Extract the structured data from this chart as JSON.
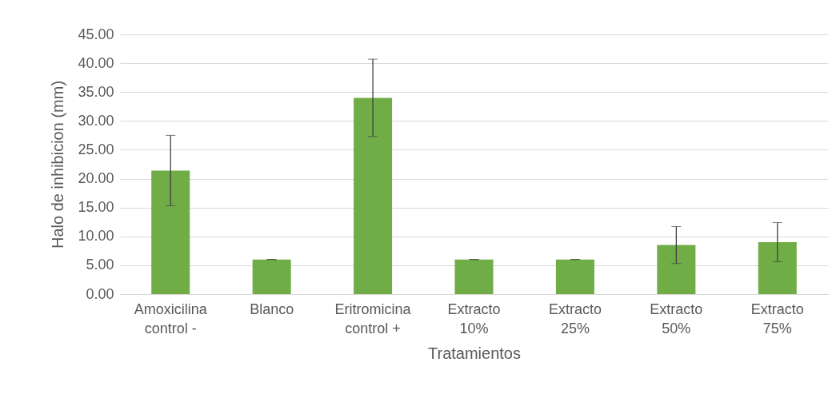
{
  "chart_data": {
    "type": "bar",
    "xlabel": "Tratamientos",
    "ylabel": "Halo de inhibicion (mm)",
    "categories": [
      "Amoxicilina control -",
      "Blanco",
      "Eritromicina control +",
      "Extracto 10%",
      "Extracto 25%",
      "Extracto 50%",
      "Extracto 75%"
    ],
    "values": [
      21.4,
      6.0,
      34.0,
      6.0,
      6.0,
      8.5,
      9.0
    ],
    "errors": [
      6.1,
      0,
      6.7,
      0,
      0,
      3.2,
      3.4
    ],
    "color": "#70ad47",
    "ylim": [
      0,
      45
    ],
    "yticks": [
      {
        "value": 0,
        "label": "0.00"
      },
      {
        "value": 5,
        "label": "5.00"
      },
      {
        "value": 10,
        "label": "10.00"
      },
      {
        "value": 15,
        "label": "15.00"
      },
      {
        "value": 20,
        "label": "20.00"
      },
      {
        "value": 25,
        "label": "25.00"
      },
      {
        "value": 30,
        "label": "30.00"
      },
      {
        "value": 35,
        "label": "35.00"
      },
      {
        "value": 40,
        "label": "40.00"
      },
      {
        "value": 45,
        "label": "45.00"
      }
    ],
    "grid": "y"
  }
}
